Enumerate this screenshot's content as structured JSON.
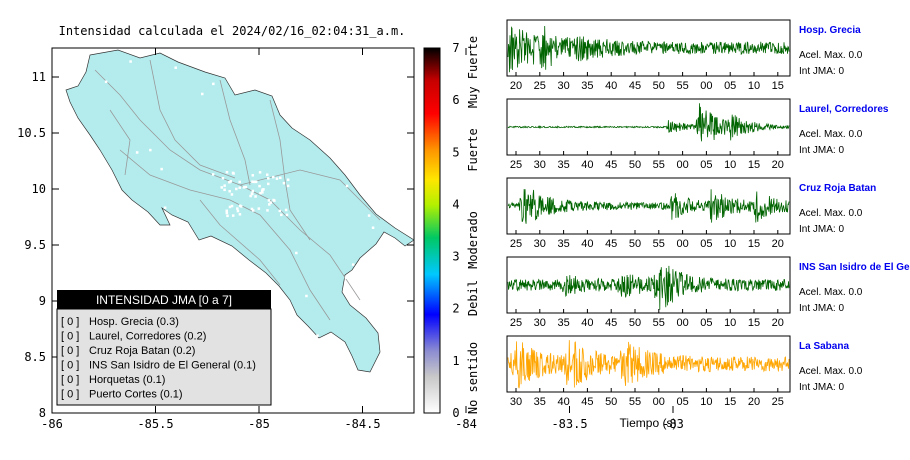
{
  "map": {
    "title": "Intensidad calculada el 2024/02/16_02:04:31_a.m.",
    "x_ticks": [
      "-86",
      "-85.5",
      "-85",
      "-84.5",
      "-84",
      "-83.5",
      "-83"
    ],
    "y_ticks": [
      "11",
      "10.5",
      "10",
      "9.5",
      "9",
      "8.5",
      "8"
    ],
    "land_color": "#b4ecee",
    "legend": {
      "title": "INTENSIDAD JMA [0 a 7]",
      "items": [
        {
          "badge": "[ 0 ]",
          "label": "Hosp. Grecia (0.3)"
        },
        {
          "badge": "[ 0 ]",
          "label": "Laurel, Corredores (0.2)"
        },
        {
          "badge": "[ 0 ]",
          "label": "Cruz Roja Batan (0.2)"
        },
        {
          "badge": "[ 0 ]",
          "label": "INS San Isidro de El General (0.1)"
        },
        {
          "badge": "[ 0 ]",
          "label": "Horquetas (0.1)"
        },
        {
          "badge": "[ 0 ]",
          "label": "Puerto Cortes (0.1)"
        }
      ]
    }
  },
  "colorbar": {
    "ticks": [
      "7",
      "6",
      "5",
      "4",
      "3",
      "2",
      "1",
      "0"
    ],
    "levels": [
      "Muy Fuerte",
      "Fuerte",
      "Moderado",
      "Debil",
      "No sentido"
    ]
  },
  "chart_data": {
    "type": "line",
    "xlabel": "Tiempo (s)",
    "series": [
      {
        "name": "Hosp. Grecia",
        "accel_label": "Acel. Max. 0.0",
        "jma_label": "Int JMA: 0",
        "ticks": [
          "20",
          "25",
          "30",
          "35",
          "40",
          "45",
          "50",
          "55",
          "00",
          "05",
          "10",
          "15"
        ],
        "color": "#006400",
        "name_color": "#0000ee",
        "bursts": [
          [
            0.0,
            1.0
          ],
          [
            0.1,
            0.8
          ],
          [
            0.25,
            0.35
          ]
        ],
        "base": 0.25
      },
      {
        "name": "Laurel, Corredores",
        "accel_label": "Acel. Max. 0.0",
        "jma_label": "Int JMA: 0",
        "ticks": [
          "25",
          "30",
          "35",
          "40",
          "45",
          "50",
          "55",
          "00",
          "05",
          "10",
          "15",
          "20"
        ],
        "color": "#006400",
        "name_color": "#0000ee",
        "bursts": [
          [
            0.68,
            1.0
          ],
          [
            0.57,
            0.25
          ],
          [
            0.79,
            0.35
          ]
        ],
        "base": 0.03
      },
      {
        "name": "Cruz Roja Batan",
        "accel_label": "Acel. Max. 0.0",
        "jma_label": "Int JMA: 0",
        "ticks": [
          "25",
          "30",
          "35",
          "40",
          "45",
          "50",
          "55",
          "00",
          "05",
          "10",
          "15",
          "20"
        ],
        "color": "#006400",
        "name_color": "#0000ee",
        "bursts": [
          [
            0.05,
            0.9
          ],
          [
            0.58,
            0.45
          ],
          [
            0.72,
            0.55
          ],
          [
            0.88,
            0.5
          ]
        ],
        "base": 0.15
      },
      {
        "name": "INS San Isidro de El Ge",
        "accel_label": "Acel. Max. 0.0",
        "jma_label": "Int JMA: 0",
        "ticks": [
          "25",
          "30",
          "35",
          "40",
          "45",
          "50",
          "55",
          "00",
          "05",
          "10",
          "15",
          "20"
        ],
        "color": "#006400",
        "name_color": "#0000ee",
        "bursts": [
          [
            0.53,
            1.0
          ],
          [
            0.4,
            0.35
          ],
          [
            0.2,
            0.25
          ]
        ],
        "base": 0.22
      },
      {
        "name": "La Sabana",
        "accel_label": "Acel. Max. 0.0",
        "jma_label": "Int JMA: 0",
        "ticks": [
          "30",
          "35",
          "40",
          "45",
          "50",
          "55",
          "00",
          "05",
          "10",
          "15",
          "20",
          "25"
        ],
        "color": "#ffa500",
        "name_color": "#0000ee",
        "bursts": [
          [
            0.02,
            0.9
          ],
          [
            0.2,
            1.0
          ],
          [
            0.41,
            0.8
          ]
        ],
        "base": 0.3
      }
    ]
  }
}
